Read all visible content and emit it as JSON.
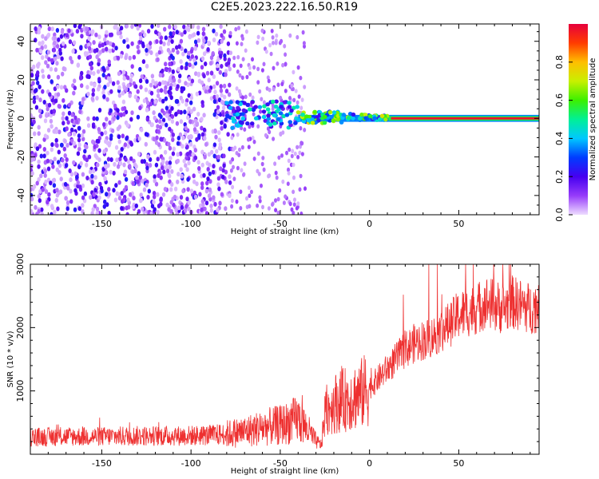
{
  "title": "C2E5.2023.222.16.50.R19",
  "chart_data": [
    {
      "type": "heatmap",
      "xlabel": "Height of straight line (km)",
      "ylabel": "Frequency (Hz)",
      "xlim": [
        -190,
        95
      ],
      "ylim": [
        -50,
        49
      ],
      "xticks": [
        -150,
        -100,
        -50,
        0,
        50
      ],
      "yticks": [
        -40,
        -20,
        0,
        20,
        40
      ],
      "colorbar": {
        "label": "Normalized spectral amplitude",
        "ticks": [
          0.0,
          0.2,
          0.4,
          0.6,
          0.8
        ],
        "range": [
          0,
          1
        ]
      },
      "description_regions": [
        {
          "x": [
            -190,
            -78
          ],
          "freq": [
            -50,
            49
          ],
          "amplitude": 0.15
        },
        {
          "x": [
            -78,
            -40
          ],
          "freq": [
            -5,
            8
          ],
          "amplitude": 0.35
        },
        {
          "x": [
            -40,
            10
          ],
          "freq": [
            -3,
            3
          ],
          "amplitude": 0.55
        },
        {
          "x": [
            10,
            95
          ],
          "freq": [
            -1,
            1
          ],
          "amplitude": 0.95
        }
      ]
    },
    {
      "type": "line",
      "xlabel": "Height of straight line (km)",
      "ylabel": "SNR (10 * v/v)",
      "xlim": [
        -190,
        95
      ],
      "ylim": [
        0,
        3000
      ],
      "xticks": [
        -150,
        -100,
        -50,
        0,
        50
      ],
      "yticks": [
        1000,
        2000,
        3000
      ],
      "color": "#ee3030",
      "series": [
        {
          "x": [
            -190,
            -170,
            -150,
            -130,
            -110,
            -90,
            -80,
            -70,
            -60,
            -50,
            -45,
            -40,
            -35,
            -30,
            -27,
            -25,
            -20,
            -15,
            -10,
            -5,
            0,
            5,
            10,
            15,
            20,
            25,
            30,
            35,
            40,
            45,
            50,
            55,
            60,
            65,
            70,
            75,
            80,
            85,
            90,
            95
          ],
          "y": [
            270,
            280,
            280,
            290,
            290,
            300,
            320,
            360,
            420,
            460,
            500,
            560,
            400,
            200,
            150,
            650,
            800,
            850,
            900,
            950,
            1050,
            1200,
            1350,
            1500,
            1650,
            1750,
            1800,
            1850,
            1950,
            2050,
            2200,
            2250,
            2300,
            2400,
            2350,
            2300,
            2400,
            2350,
            2300,
            2350
          ]
        }
      ]
    }
  ]
}
